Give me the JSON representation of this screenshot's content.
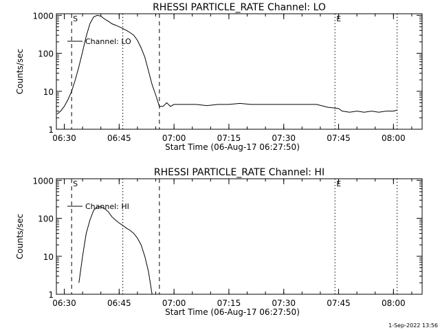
{
  "footer_timestamp": "1-Sep-2022 13:56",
  "chart_data": [
    {
      "type": "line",
      "title": "RHESSI PARTICLE_RATE Channel: LO",
      "xlabel": "Start Time (06-Aug-17 06:27:50)",
      "ylabel": "Counts/sec",
      "yscale": "log",
      "ylim": [
        1,
        1100
      ],
      "xlim": [
        "06:27:50",
        "08:07:50"
      ],
      "x_ticks": [
        "06:30",
        "06:45",
        "07:00",
        "07:15",
        "07:30",
        "07:45",
        "08:00"
      ],
      "y_ticks": [
        "1",
        "10",
        "100",
        "1000"
      ],
      "legend": {
        "label": "Channel: LO",
        "placement": "top-left"
      },
      "markers": [
        {
          "label": "S",
          "time": "06:32",
          "style": "dashed"
        },
        {
          "label": "",
          "time": "06:46",
          "style": "dotted"
        },
        {
          "label": "",
          "time": "06:56",
          "style": "dashed"
        },
        {
          "label": "E",
          "time": "07:44",
          "style": "dotted"
        },
        {
          "label": "",
          "time": "08:01",
          "style": "dotted"
        }
      ],
      "series": [
        {
          "name": "Channel: LO",
          "x": [
            "06:28",
            "06:29",
            "06:30",
            "06:31",
            "06:32",
            "06:33",
            "06:34",
            "06:35",
            "06:36",
            "06:37",
            "06:38",
            "06:39",
            "06:40",
            "06:41",
            "06:42",
            "06:43",
            "06:44",
            "06:45",
            "06:46",
            "06:47",
            "06:48",
            "06:49",
            "06:50",
            "06:51",
            "06:52",
            "06:53",
            "06:54",
            "06:55",
            "06:56",
            "06:57",
            "06:58",
            "06:59",
            "07:00",
            "07:03",
            "07:06",
            "07:09",
            "07:12",
            "07:15",
            "07:18",
            "07:21",
            "07:24",
            "07:27",
            "07:30",
            "07:33",
            "07:36",
            "07:39",
            "07:42",
            "07:45",
            "07:46",
            "07:48",
            "07:50",
            "07:52",
            "07:54",
            "07:56",
            "07:58",
            "08:00",
            "08:01"
          ],
          "values": [
            2.5,
            3,
            4,
            6,
            10,
            20,
            45,
            110,
            280,
            600,
            900,
            1000,
            950,
            800,
            700,
            600,
            550,
            500,
            450,
            400,
            350,
            300,
            220,
            140,
            80,
            35,
            15,
            8,
            4,
            4,
            5,
            4,
            4.5,
            4.5,
            4.5,
            4.2,
            4.5,
            4.5,
            4.8,
            4.5,
            4.5,
            4.5,
            4.5,
            4.5,
            4.5,
            4.5,
            3.8,
            3.5,
            3,
            2.8,
            3,
            2.8,
            3,
            2.8,
            3,
            3,
            3.2
          ]
        }
      ]
    },
    {
      "type": "line",
      "title": "RHESSI PARTICLE_RATE Channel: HI",
      "xlabel": "Start Time (06-Aug-17 06:27:50)",
      "ylabel": "Counts/sec",
      "yscale": "log",
      "ylim": [
        1,
        1100
      ],
      "xlim": [
        "06:27:50",
        "08:07:50"
      ],
      "x_ticks": [
        "06:30",
        "06:45",
        "07:00",
        "07:15",
        "07:30",
        "07:45",
        "08:00"
      ],
      "y_ticks": [
        "1",
        "10",
        "100",
        "1000"
      ],
      "legend": {
        "label": "Channel: HI",
        "placement": "top-left"
      },
      "markers": [
        {
          "label": "S",
          "time": "06:32",
          "style": "dashed"
        },
        {
          "label": "",
          "time": "06:46",
          "style": "dotted"
        },
        {
          "label": "",
          "time": "06:56",
          "style": "dashed"
        },
        {
          "label": "E",
          "time": "07:44",
          "style": "dotted"
        },
        {
          "label": "",
          "time": "08:01",
          "style": "dotted"
        }
      ],
      "series": [
        {
          "name": "Channel: HI",
          "x": [
            "06:34",
            "06:35",
            "06:36",
            "06:37",
            "06:38",
            "06:39",
            "06:40",
            "06:41",
            "06:42",
            "06:43",
            "06:44",
            "06:45",
            "06:46",
            "06:47",
            "06:48",
            "06:49",
            "06:50",
            "06:51",
            "06:52",
            "06:53",
            "06:54"
          ],
          "values": [
            2,
            10,
            40,
            90,
            160,
            200,
            200,
            180,
            150,
            110,
            90,
            75,
            65,
            55,
            48,
            40,
            30,
            20,
            10,
            4,
            1
          ]
        }
      ]
    }
  ]
}
